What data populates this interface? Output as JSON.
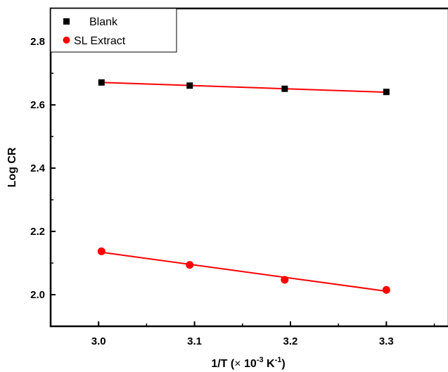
{
  "chart_data": {
    "type": "scatter",
    "title": "",
    "xlabel": {
      "base": "1/T (",
      "times": "×",
      "ten": " 10",
      "exp1": "-3",
      "unit": " K",
      "exp2": "-1",
      "close": ")"
    },
    "ylabel": "Log CR",
    "xlim": [
      2.95,
      3.365
    ],
    "ylim": [
      1.9,
      2.905
    ],
    "xticks": [
      3.0,
      3.1,
      3.2,
      3.3
    ],
    "xtick_labels": [
      "3.0",
      "3.1",
      "3.2",
      "3.3"
    ],
    "yticks": [
      2.0,
      2.2,
      2.4,
      2.6,
      2.8
    ],
    "ytick_labels": [
      "2.0",
      "2.2",
      "2.4",
      "2.6",
      "2.8"
    ],
    "grid": false,
    "legend_position": "top-left",
    "series": [
      {
        "name": "Blank",
        "marker": "square",
        "marker_color": "#000000",
        "fit_color": "#ff0000",
        "x": [
          3.003,
          3.095,
          3.194,
          3.3
        ],
        "y": [
          2.671,
          2.661,
          2.651,
          2.641
        ],
        "fit": [
          [
            3.003,
            2.671
          ],
          [
            3.3,
            2.64
          ]
        ]
      },
      {
        "name": "SL Extract",
        "marker": "circle",
        "marker_color": "#ff0000",
        "fit_color": "#ff0000",
        "x": [
          3.003,
          3.095,
          3.194,
          3.3
        ],
        "y": [
          2.137,
          2.094,
          2.047,
          2.015
        ],
        "fit": [
          [
            3.003,
            2.134
          ],
          [
            3.3,
            2.011
          ]
        ]
      }
    ]
  }
}
